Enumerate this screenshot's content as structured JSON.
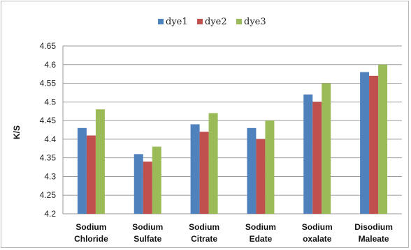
{
  "chart_data": {
    "type": "bar",
    "title": "",
    "xlabel": "",
    "ylabel": "K/S",
    "ylim": [
      4.2,
      4.65
    ],
    "yticks": [
      "4.2",
      "4.25",
      "4.3",
      "4.35",
      "4.4",
      "4.45",
      "4.5",
      "4.55",
      "4.6",
      "4.65"
    ],
    "grid": true,
    "legend_position": "top-center",
    "categories": [
      [
        "Sodium",
        "Chloride"
      ],
      [
        "Sodium",
        "Sulfate"
      ],
      [
        "Sodium",
        "Citrate"
      ],
      [
        "Sodium",
        "Edate"
      ],
      [
        "Sodium",
        "oxalate"
      ],
      [
        "Disodium",
        "Maleate"
      ]
    ],
    "series": [
      {
        "name": "dye1",
        "color": "#4f81bd",
        "values": [
          4.43,
          4.36,
          4.44,
          4.43,
          4.52,
          4.58
        ]
      },
      {
        "name": "dye2",
        "color": "#c0504d",
        "values": [
          4.41,
          4.34,
          4.42,
          4.4,
          4.5,
          4.57
        ]
      },
      {
        "name": "dye3",
        "color": "#9bbb59",
        "values": [
          4.48,
          4.38,
          4.47,
          4.45,
          4.55,
          4.6
        ]
      }
    ]
  }
}
